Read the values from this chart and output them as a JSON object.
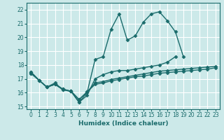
{
  "xlabel": "Humidex (Indice chaleur)",
  "xlim": [
    -0.5,
    23.5
  ],
  "ylim": [
    14.8,
    22.5
  ],
  "yticks": [
    15,
    16,
    17,
    18,
    19,
    20,
    21,
    22
  ],
  "xticks": [
    0,
    1,
    2,
    3,
    4,
    5,
    6,
    7,
    8,
    9,
    10,
    11,
    12,
    13,
    14,
    15,
    16,
    17,
    18,
    19,
    20,
    21,
    22,
    23
  ],
  "bg_color": "#cce9e9",
  "grid_color": "#ffffff",
  "line_color": "#1a6b6b",
  "lines": [
    {
      "x": [
        0,
        1,
        2,
        3,
        4,
        5,
        6,
        7,
        8,
        9,
        10,
        11,
        12,
        13,
        14,
        15,
        16,
        17,
        18,
        19
      ],
      "y": [
        17.5,
        16.9,
        16.4,
        16.7,
        16.2,
        16.1,
        15.3,
        16.0,
        18.4,
        18.6,
        20.6,
        21.7,
        19.8,
        20.1,
        21.1,
        21.7,
        21.85,
        21.2,
        20.4,
        18.6
      ],
      "marker": "D",
      "markersize": 2.5,
      "linewidth": 1.0
    },
    {
      "x": [
        0,
        1,
        2,
        3,
        4,
        5,
        6,
        7,
        8,
        9,
        10,
        11,
        12,
        13,
        14,
        15,
        16,
        17,
        18
      ],
      "y": [
        17.5,
        16.9,
        16.4,
        16.6,
        16.2,
        16.1,
        15.3,
        15.8,
        17.0,
        17.3,
        17.5,
        17.6,
        17.6,
        17.7,
        17.8,
        17.9,
        18.0,
        18.2,
        18.6
      ],
      "marker": "D",
      "markersize": 2.5,
      "linewidth": 1.0
    },
    {
      "x": [
        0,
        1,
        2,
        3,
        4,
        5,
        6,
        7,
        8,
        9,
        10,
        11,
        12,
        13,
        14,
        15,
        16,
        17,
        18,
        19,
        20,
        21,
        22,
        23
      ],
      "y": [
        17.4,
        16.9,
        16.4,
        16.6,
        16.25,
        16.1,
        15.5,
        16.05,
        16.6,
        16.7,
        16.85,
        16.95,
        17.05,
        17.15,
        17.2,
        17.3,
        17.4,
        17.45,
        17.5,
        17.55,
        17.6,
        17.65,
        17.7,
        17.8
      ],
      "marker": "D",
      "markersize": 2.5,
      "linewidth": 1.0
    },
    {
      "x": [
        0,
        1,
        2,
        3,
        4,
        5,
        6,
        7,
        8,
        9,
        10,
        11,
        12,
        13,
        14,
        15,
        16,
        17,
        18,
        19,
        20,
        21,
        22,
        23
      ],
      "y": [
        17.4,
        16.9,
        16.4,
        16.6,
        16.25,
        16.1,
        15.5,
        16.05,
        16.7,
        16.8,
        16.95,
        17.05,
        17.15,
        17.25,
        17.35,
        17.45,
        17.55,
        17.6,
        17.65,
        17.7,
        17.75,
        17.8,
        17.85,
        17.9
      ],
      "marker": "D",
      "markersize": 2.5,
      "linewidth": 1.0
    }
  ]
}
